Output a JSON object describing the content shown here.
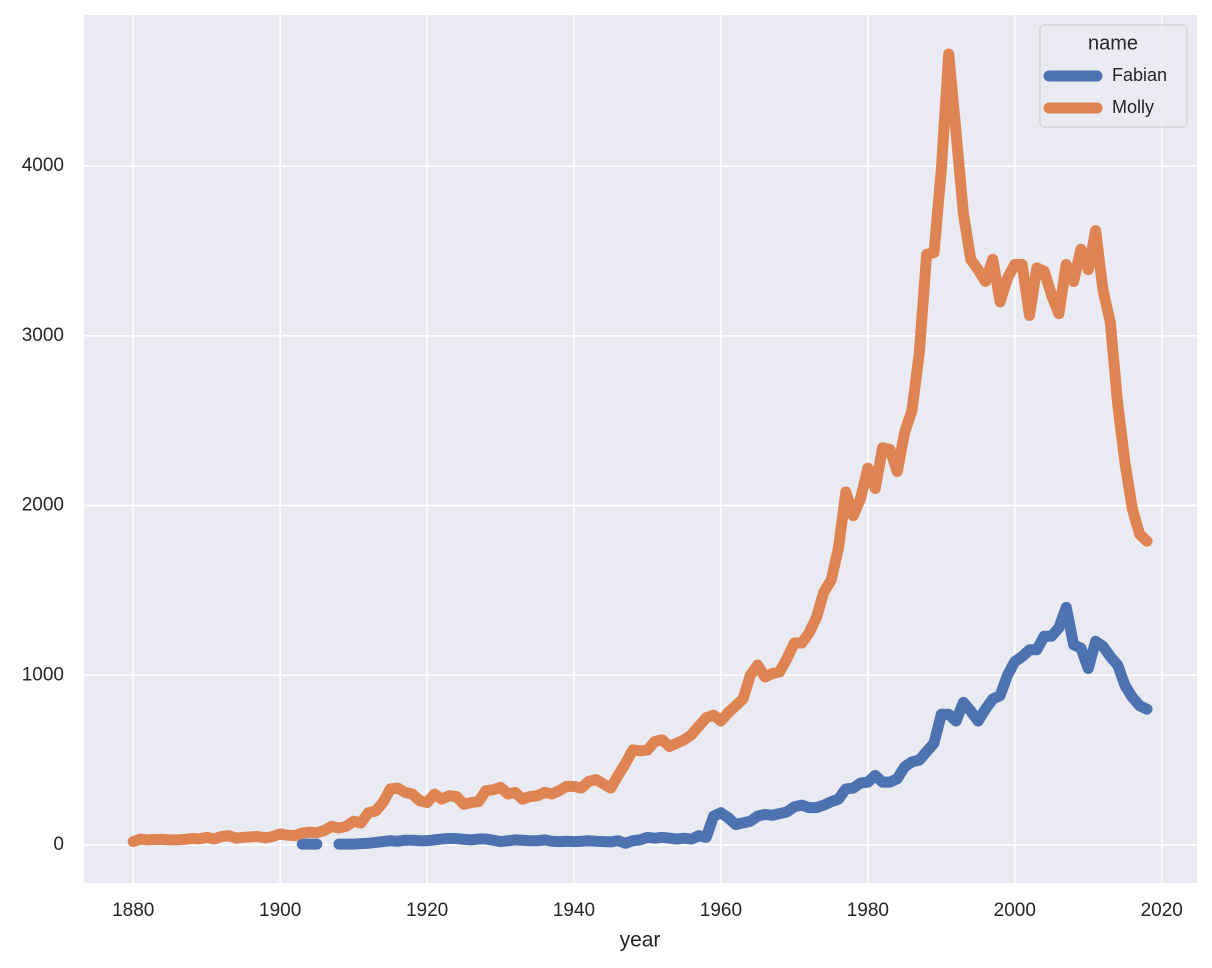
{
  "chart_data": {
    "type": "line",
    "xlabel": "year",
    "legend_title": "name",
    "legend_position": "upper right",
    "grid": true,
    "xlim": [
      1873.3,
      2024.8
    ],
    "ylim": [
      -224,
      4890
    ],
    "xticks": [
      1880,
      1900,
      1920,
      1940,
      1960,
      1980,
      2000,
      2020
    ],
    "yticks": [
      0,
      1000,
      2000,
      3000,
      4000
    ],
    "x": [
      1880,
      1881,
      1882,
      1883,
      1884,
      1885,
      1886,
      1887,
      1888,
      1889,
      1890,
      1891,
      1892,
      1893,
      1894,
      1895,
      1896,
      1897,
      1898,
      1899,
      1900,
      1901,
      1902,
      1903,
      1904,
      1905,
      1906,
      1907,
      1908,
      1909,
      1910,
      1911,
      1912,
      1913,
      1914,
      1915,
      1916,
      1917,
      1918,
      1919,
      1920,
      1921,
      1922,
      1923,
      1924,
      1925,
      1926,
      1927,
      1928,
      1929,
      1930,
      1931,
      1932,
      1933,
      1934,
      1935,
      1936,
      1937,
      1938,
      1939,
      1940,
      1941,
      1942,
      1943,
      1944,
      1945,
      1946,
      1947,
      1948,
      1949,
      1950,
      1951,
      1952,
      1953,
      1954,
      1955,
      1956,
      1957,
      1958,
      1959,
      1960,
      1961,
      1962,
      1963,
      1964,
      1965,
      1966,
      1967,
      1968,
      1969,
      1970,
      1971,
      1972,
      1973,
      1974,
      1975,
      1976,
      1977,
      1978,
      1979,
      1980,
      1981,
      1982,
      1983,
      1984,
      1985,
      1986,
      1987,
      1988,
      1989,
      1990,
      1991,
      1992,
      1993,
      1994,
      1995,
      1996,
      1997,
      1998,
      1999,
      2000,
      2001,
      2002,
      2003,
      2004,
      2005,
      2006,
      2007,
      2008,
      2009,
      2010,
      2011,
      2012,
      2013,
      2014,
      2015,
      2016,
      2017,
      2018
    ],
    "series": [
      {
        "name": "Fabian",
        "color": "#4c72b0",
        "values": [
          null,
          null,
          null,
          null,
          null,
          null,
          null,
          null,
          null,
          null,
          null,
          null,
          null,
          null,
          null,
          null,
          null,
          null,
          null,
          null,
          null,
          null,
          null,
          5,
          5,
          5,
          null,
          null,
          5,
          5,
          5,
          8,
          10,
          15,
          20,
          25,
          22,
          28,
          28,
          25,
          25,
          30,
          35,
          38,
          38,
          33,
          30,
          35,
          35,
          28,
          20,
          25,
          30,
          28,
          25,
          25,
          30,
          22,
          20,
          22,
          20,
          22,
          25,
          22,
          20,
          18,
          25,
          10,
          25,
          30,
          45,
          40,
          45,
          40,
          35,
          40,
          35,
          55,
          45,
          170,
          190,
          160,
          120,
          130,
          140,
          170,
          180,
          175,
          185,
          195,
          225,
          235,
          220,
          220,
          235,
          255,
          270,
          330,
          335,
          365,
          370,
          410,
          370,
          370,
          390,
          460,
          490,
          500,
          550,
          600,
          770,
          770,
          730,
          840,
          790,
          730,
          800,
          860,
          880,
          1000,
          1080,
          1110,
          1150,
          1150,
          1230,
          1230,
          1280,
          1400,
          1180,
          1160,
          1040,
          1200,
          1170,
          1110,
          1060,
          940,
          870,
          820,
          800
        ]
      },
      {
        "name": "Molly",
        "color": "#dd8452",
        "values": [
          20,
          35,
          30,
          32,
          33,
          30,
          30,
          33,
          38,
          36,
          45,
          35,
          50,
          55,
          40,
          45,
          48,
          50,
          42,
          50,
          65,
          58,
          55,
          70,
          75,
          72,
          85,
          110,
          100,
          110,
          140,
          130,
          190,
          200,
          250,
          330,
          335,
          310,
          300,
          260,
          250,
          300,
          270,
          290,
          285,
          240,
          250,
          255,
          320,
          325,
          340,
          300,
          310,
          270,
          285,
          290,
          310,
          300,
          320,
          345,
          345,
          335,
          375,
          385,
          360,
          335,
          410,
          480,
          560,
          555,
          560,
          610,
          620,
          580,
          600,
          620,
          650,
          700,
          750,
          765,
          730,
          780,
          820,
          860,
          1000,
          1060,
          990,
          1010,
          1020,
          1100,
          1190,
          1190,
          1250,
          1340,
          1490,
          1560,
          1750,
          2080,
          1940,
          2040,
          2220,
          2100,
          2340,
          2330,
          2200,
          2430,
          2560,
          2900,
          3480,
          3490,
          3980,
          4660,
          4200,
          3720,
          3450,
          3390,
          3320,
          3450,
          3200,
          3340,
          3420,
          3420,
          3120,
          3400,
          3380,
          3240,
          3130,
          3420,
          3320,
          3510,
          3390,
          3620,
          3270,
          3080,
          2600,
          2250,
          1980,
          1830,
          1790
        ]
      }
    ]
  }
}
